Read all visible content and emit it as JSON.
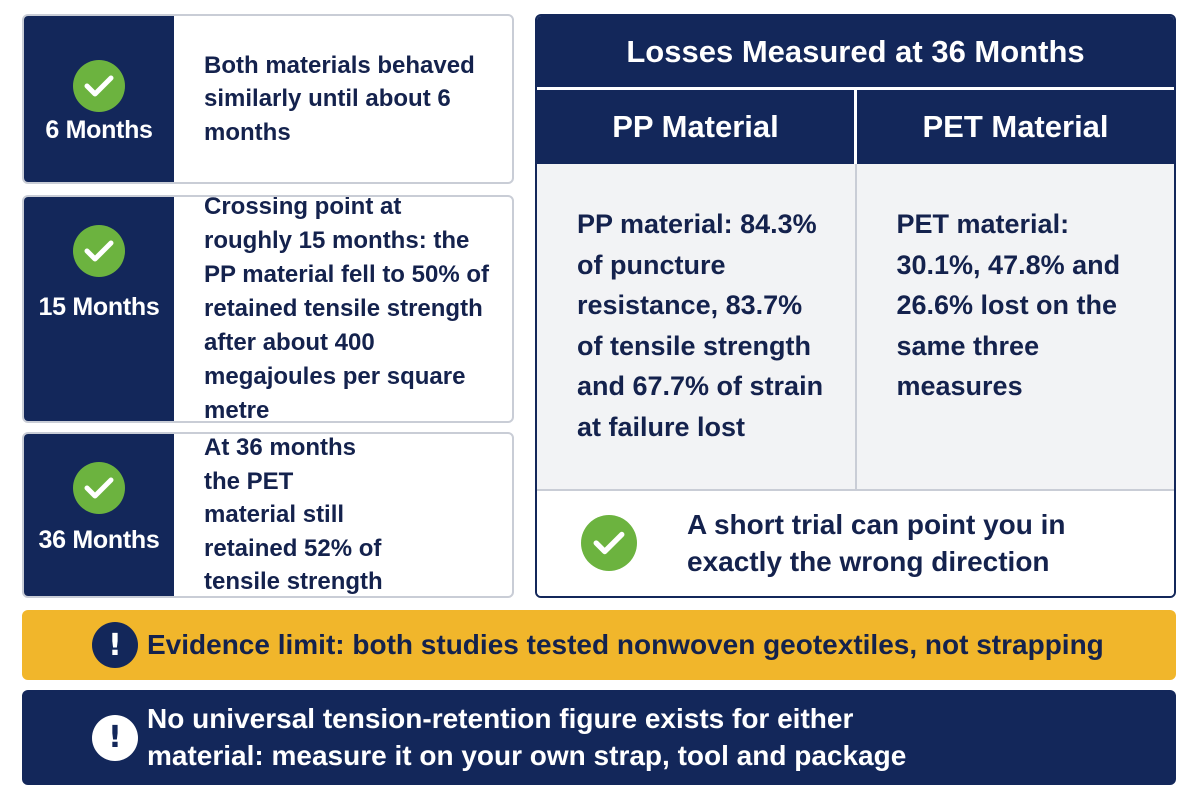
{
  "timeline": [
    {
      "label": "6 Months",
      "text": "Both materials behaved similarly until about 6 months",
      "icon": "check-circle-icon"
    },
    {
      "label": "15 Months",
      "text": "Crossing point at roughly 15 months: the PP material fell to 50% of retained tensile strength after about 400 megajoules per square metre",
      "icon": "check-circle-icon"
    },
    {
      "label": "36 Months",
      "text": "At 36 months the PET material still retained 52% of tensile strength",
      "icon": "check-circle-icon"
    }
  ],
  "losses": {
    "title": "Losses Measured at 36 Months",
    "pp_header": "PP Material",
    "pet_header": "PET Material",
    "pp_text": "PP material: 84.3% of puncture resistance, 83.7% of tensile strength and 67.7% of strain at failure lost",
    "pet_text": "PET material: 30.1%, 47.8% and 26.6% lost on the same three measures",
    "takeaway": "A short trial can point you in exactly the wrong direction"
  },
  "banners": {
    "evidence": "Evidence limit: both studies tested nonwoven geotextiles, not strapping",
    "conclusion": "No universal tension-retention figure exists for either material: measure it on your own strap, tool and package",
    "icon": "exclamation-circle-icon"
  },
  "colors": {
    "navy": "#13275a",
    "green": "#6cb33f",
    "amber": "#f1b62b"
  }
}
